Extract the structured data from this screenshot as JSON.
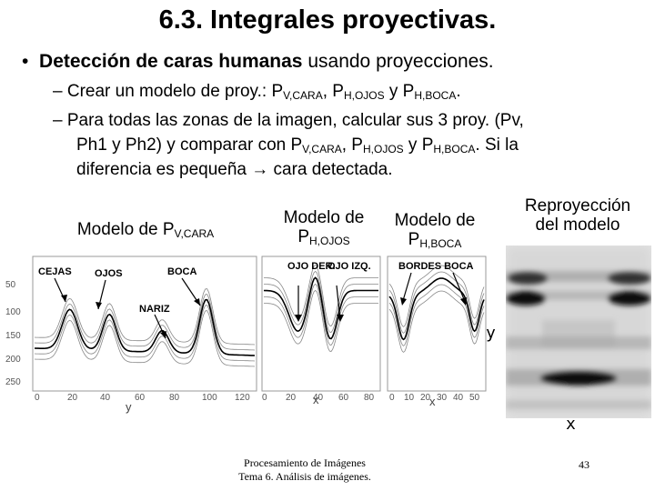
{
  "slide": {
    "title": "6.3. Integrales proyectivas.",
    "bullet": {
      "bold": "Detección de caras humanas",
      "rest": " usando proyecciones."
    },
    "line1": {
      "pre": "– Crear un modelo de proy.: P",
      "s1": "V,CARA",
      "m1": ", P",
      "s2": "H,OJOS",
      "m2": " y P",
      "s3": "H,BOCA",
      "end": "."
    },
    "line2": "– Para todas las zonas de la imagen, calcular sus 3 proy. (Pv,",
    "line3": {
      "pre": "Ph1 y Ph2) y comparar con P",
      "s1": "V,CARA",
      "m1": ", P",
      "s2": "H,OJOS",
      "m2": " y P",
      "s3": "H,BOCA",
      "end": ". Si la"
    },
    "line4": "diferencia es pequeña → cara detectada."
  },
  "labels": {
    "pv": {
      "pre": "Modelo de P",
      "sub": "V,CARA"
    },
    "ph_ojos": {
      "l1": "Modelo de",
      "pre": "P",
      "sub": "H,OJOS"
    },
    "ph_boca": {
      "l1": "Modelo de",
      "pre": "P",
      "sub": "H,BOCA"
    },
    "reproj": {
      "l1": "Reproyección",
      "l2": "del modelo"
    }
  },
  "plots": {
    "pv": {
      "annotations": [
        "CEJAS",
        "OJOS",
        "BOCA",
        "NARIZ"
      ],
      "yticks": [
        "50",
        "100",
        "150",
        "200",
        "250"
      ],
      "xticks": [
        "0",
        "20",
        "40",
        "60",
        "80",
        "100",
        "120"
      ],
      "xlabel": "y"
    },
    "ojos": {
      "annotations": [
        "OJO DER.",
        "OJO IZQ."
      ],
      "xticks": [
        "0",
        "20",
        "40",
        "60",
        "80"
      ],
      "xlabel": "x"
    },
    "boca": {
      "annotations": [
        "BORDES BOCA"
      ],
      "xticks": [
        "0",
        "10",
        "20",
        "30",
        "40",
        "50"
      ],
      "xlabel": "x"
    },
    "reproj": {
      "ylabel": "y",
      "xlabel": "x"
    }
  },
  "footer": {
    "line1": "Procesamiento de Imágenes",
    "line2": "Tema 6. Análisis de imágenes.",
    "page": "43"
  }
}
